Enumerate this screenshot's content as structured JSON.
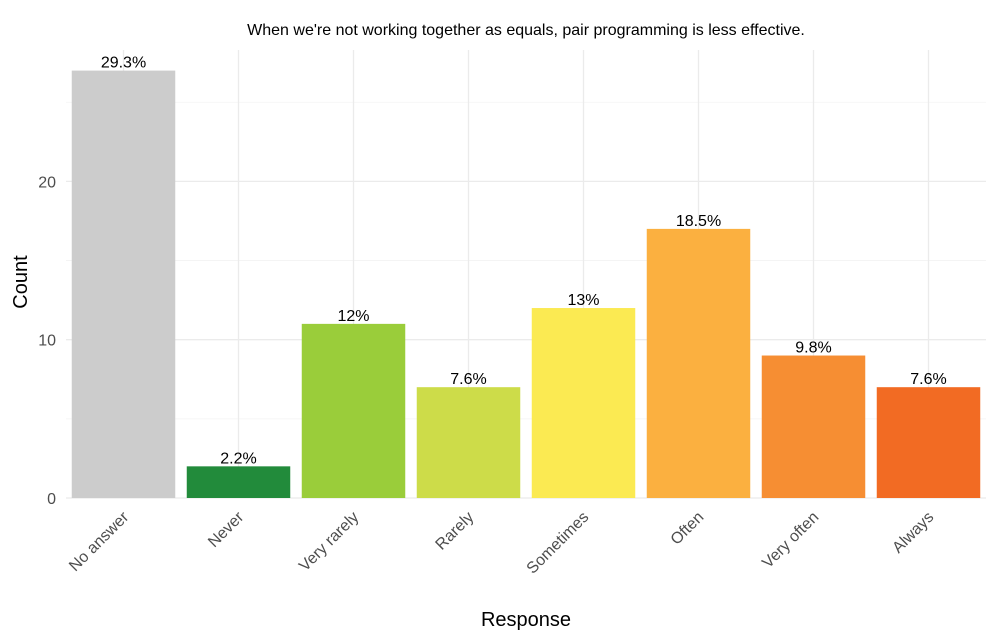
{
  "chart_data": {
    "type": "bar",
    "title": "When we're not working together as equals, pair programming is less effective.",
    "xlabel": "Response",
    "ylabel": "Count",
    "categories": [
      "No answer",
      "Never",
      "Very rarely",
      "Rarely",
      "Sometimes",
      "Often",
      "Very often",
      "Always"
    ],
    "values": [
      27,
      2,
      11,
      7,
      12,
      17,
      9,
      7
    ],
    "labels": [
      "29.3%",
      "2.2%",
      "12%",
      "7.6%",
      "13%",
      "18.5%",
      "9.8%",
      "7.6%"
    ],
    "colors": [
      "#cccccc",
      "#228b3b",
      "#9acd3a",
      "#cddc49",
      "#fbea52",
      "#fbb040",
      "#f68e33",
      "#f26b23"
    ],
    "y_ticks": [
      0,
      10,
      20
    ],
    "ylim": [
      0,
      28.3
    ],
    "grid": true,
    "legend": "none"
  }
}
